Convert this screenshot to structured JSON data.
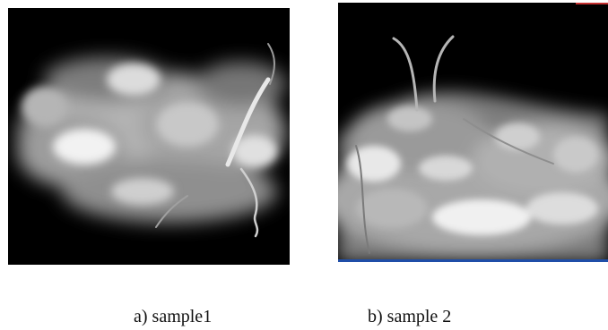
{
  "figure": {
    "panels": [
      {
        "id": "a",
        "caption": "a) sample1"
      },
      {
        "id": "b",
        "caption": "b) sample 2"
      }
    ]
  },
  "colors": {
    "background": "#ffffff",
    "image_background": "#000000",
    "bottom_edge_panel_b": "#1f4ea8",
    "top_edge_panel_b": "#c43030"
  }
}
